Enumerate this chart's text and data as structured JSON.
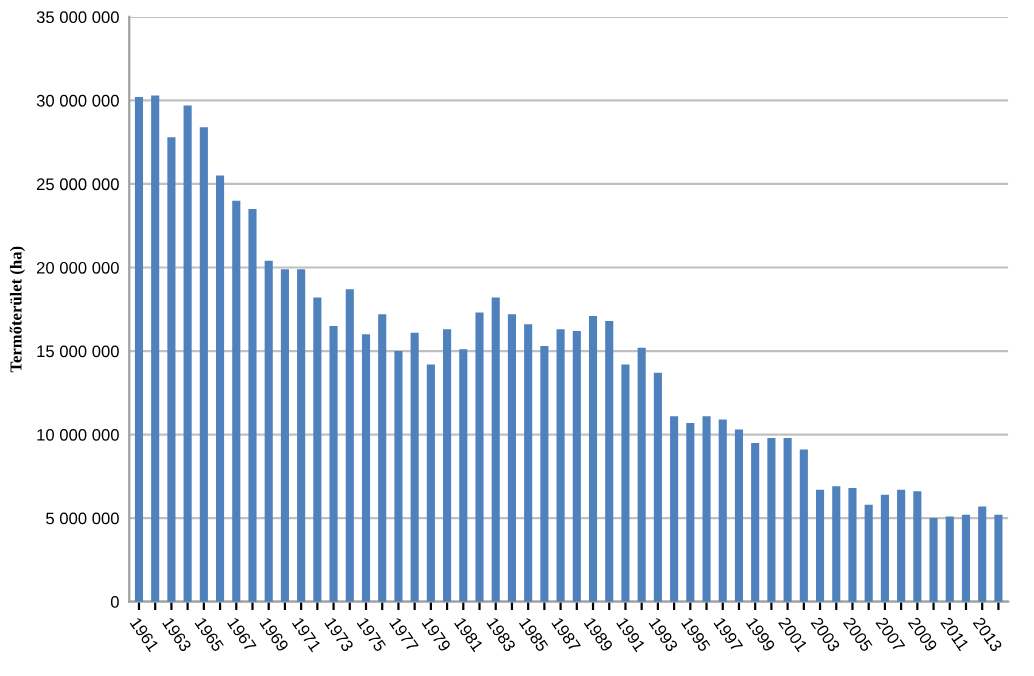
{
  "chart_data": {
    "type": "bar",
    "ylabel": "Termőterület (ha)",
    "categories": [
      "1961",
      null,
      "1963",
      null,
      "1965",
      null,
      "1967",
      null,
      "1969",
      null,
      "1971",
      null,
      "1973",
      null,
      "1975",
      null,
      "1977",
      null,
      "1979",
      null,
      "1981",
      null,
      "1983",
      null,
      "1985",
      null,
      "1987",
      null,
      "1989",
      null,
      "1991",
      null,
      "1993",
      null,
      "1995",
      null,
      "1997",
      null,
      "1999",
      null,
      "2001",
      null,
      "2003",
      null,
      "2005",
      null,
      "2007",
      null,
      "2009",
      null,
      "2011",
      null,
      "2013",
      null
    ],
    "values": [
      30200000,
      30300000,
      27800000,
      29700000,
      28400000,
      25500000,
      24000000,
      23500000,
      20400000,
      19900000,
      19900000,
      18200000,
      16500000,
      18700000,
      16000000,
      17200000,
      15000000,
      16100000,
      14200000,
      16300000,
      15100000,
      17300000,
      18200000,
      17200000,
      16600000,
      15300000,
      16300000,
      16200000,
      17100000,
      16800000,
      14200000,
      15200000,
      13700000,
      11100000,
      10700000,
      11100000,
      10900000,
      10300000,
      9500000,
      9800000,
      9800000,
      9100000,
      6700000,
      6900000,
      6800000,
      5800000,
      6400000,
      6700000,
      6600000,
      5000000,
      5100000,
      5200000,
      5700000,
      5200000
    ],
    "color": "#4f81bd",
    "ylim": [
      0,
      35000000
    ],
    "yticks": [
      0,
      {
        "value": 5000000,
        "label": "5 000 000"
      },
      {
        "value": 10000000,
        "label": "10 000 000"
      },
      {
        "value": 15000000,
        "label": "15 000 000"
      },
      {
        "value": 20000000,
        "label": "20 000 000"
      },
      {
        "value": 25000000,
        "label": "25 000 000"
      },
      {
        "value": 30000000,
        "label": "30 000 000"
      },
      {
        "value": 35000000,
        "label": "35 000 000"
      }
    ],
    "grid": "y",
    "legend": false
  }
}
